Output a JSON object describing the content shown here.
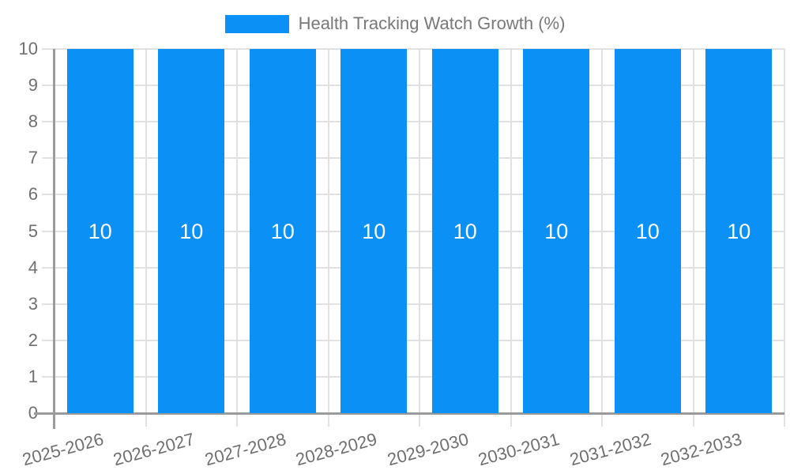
{
  "chart_data": {
    "type": "bar",
    "title": "Health Tracking Watch Growth (%)",
    "categories": [
      "2025-2026",
      "2026-2027",
      "2027-2028",
      "2028-2029",
      "2029-2030",
      "2030-2031",
      "2031-2032",
      "2032-2033"
    ],
    "series": [
      {
        "name": "Health Tracking Watch Growth (%)",
        "values": [
          10,
          10,
          10,
          10,
          10,
          10,
          10,
          10
        ]
      }
    ],
    "bar_value_labels": [
      "10",
      "10",
      "10",
      "10",
      "10",
      "10",
      "10",
      "10"
    ],
    "xlabel": "",
    "ylabel": "",
    "ylim": [
      0,
      10
    ],
    "yticks": [
      0,
      1,
      2,
      3,
      4,
      5,
      6,
      7,
      8,
      9,
      10
    ],
    "grid": true,
    "legend_position": "top",
    "colors": {
      "bar": "#0b90f5",
      "bar_label": "#ffffff",
      "grid": "#e1e1e1",
      "axis": "#9b9b9b",
      "tick_text": "#6f6f6f",
      "legend_text": "#787878"
    }
  }
}
